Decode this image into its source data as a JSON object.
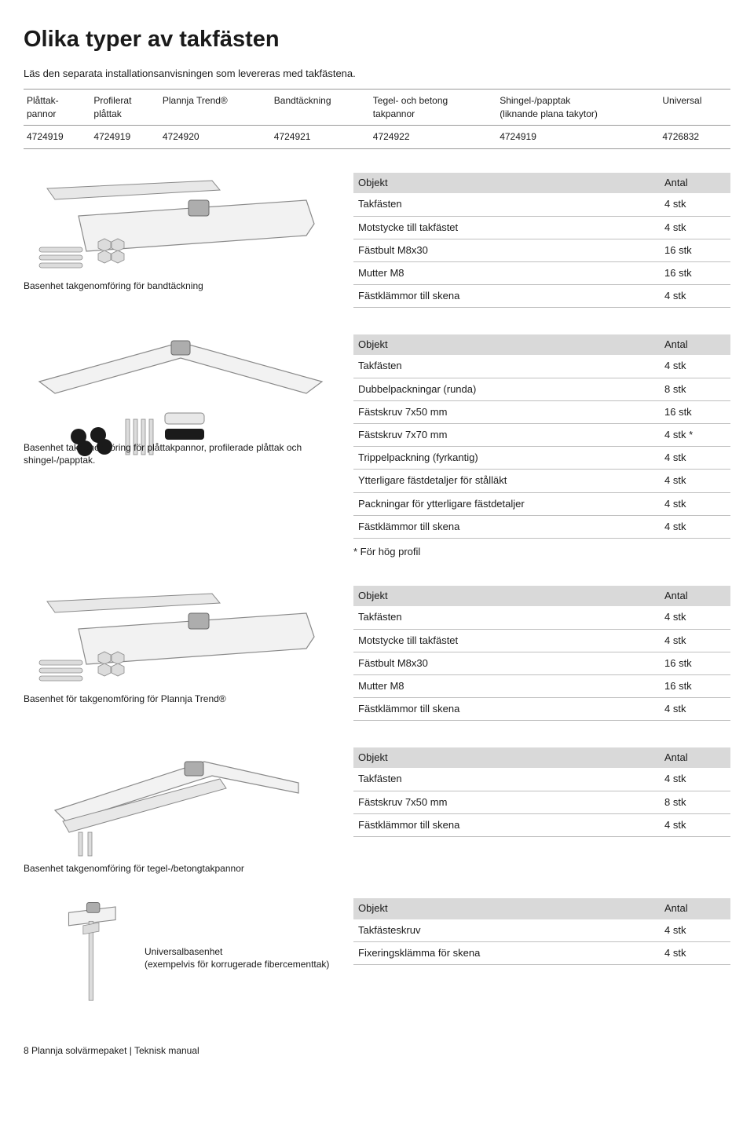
{
  "title": "Olika typer av takfästen",
  "intro": "Läs den separata installationsanvisningen som levereras med takfästena.",
  "topTable": {
    "headers": [
      "Plåttak-\npannor",
      "Profilerat\nplåttak",
      "Plannja Trend®",
      "Bandtäckning",
      "Tegel- och betong\ntakpannor",
      "Shingel-/papptak\n(liknande plana takytor)",
      "Universal"
    ],
    "row": [
      "4724919",
      "4724919",
      "4724920",
      "4724921",
      "4724922",
      "4724919",
      "4726832"
    ]
  },
  "sections": [
    {
      "caption": "Basenhet takgenomföring för bandtäckning",
      "illus": "type-a",
      "table": {
        "header": [
          "Objekt",
          "Antal"
        ],
        "rows": [
          [
            "Takfästen",
            "4 stk"
          ],
          [
            "Motstycke till takfästet",
            "4 stk"
          ],
          [
            "Fästbult M8x30",
            "16 stk"
          ],
          [
            "Mutter M8",
            "16 stk"
          ],
          [
            "Fästklämmor till skena",
            "4 stk"
          ]
        ]
      }
    },
    {
      "caption": "Basenhet takgenomföring för plåttakpannor, profilerade plåttak och shingel-/papptak.",
      "illus": "type-b",
      "table": {
        "header": [
          "Objekt",
          "Antal"
        ],
        "rows": [
          [
            "Takfästen",
            "4 stk"
          ],
          [
            "Dubbelpackningar (runda)",
            "8 stk"
          ],
          [
            "Fästskruv 7x50 mm",
            "16 stk"
          ],
          [
            "Fästskruv 7x70 mm",
            "4 stk *"
          ],
          [
            "Trippelpackning (fyrkantig)",
            "4 stk"
          ],
          [
            "Ytterligare fästdetaljer för stålläkt",
            "4 stk"
          ],
          [
            "Packningar för ytterligare fästdetaljer",
            "4 stk"
          ],
          [
            "Fästklämmor till skena",
            "4 stk"
          ]
        ]
      },
      "footnote": "* För hög profil"
    },
    {
      "caption": "Basenhet för takgenomföring för Plannja Trend®",
      "illus": "type-a",
      "table": {
        "header": [
          "Objekt",
          "Antal"
        ],
        "rows": [
          [
            "Takfästen",
            "4 stk"
          ],
          [
            "Motstycke till takfästet",
            "4 stk"
          ],
          [
            "Fästbult M8x30",
            "16 stk"
          ],
          [
            "Mutter M8",
            "16 stk"
          ],
          [
            "Fästklämmor till skena",
            "4 stk"
          ]
        ]
      }
    },
    {
      "caption": "Basenhet takgenomföring för tegel-/betongtakpannor",
      "captionBelow": true,
      "illus": "type-c",
      "table": {
        "header": [
          "Objekt",
          "Antal"
        ],
        "rows": [
          [
            "Takfästen",
            "4 stk"
          ],
          [
            "Fästskruv 7x50 mm",
            "8 stk"
          ],
          [
            "Fästklämmor till skena",
            "4 stk"
          ]
        ]
      }
    },
    {
      "caption": "Universalbasenhet\n(exempelvis för korrugerade fibercementtak)",
      "illus": "type-d",
      "indent": true,
      "table": {
        "header": [
          "Objekt",
          "Antal"
        ],
        "rows": [
          [
            "Takfästeskruv",
            "4 stk"
          ],
          [
            "Fixeringsklämma för skena",
            "4 stk"
          ]
        ]
      }
    }
  ],
  "footer": "8  Plannja solvärmepaket | Teknisk manual",
  "colors": {
    "headerBg": "#d9d9d9",
    "rule": "#bfbfbf",
    "text": "#1a1a1a"
  }
}
